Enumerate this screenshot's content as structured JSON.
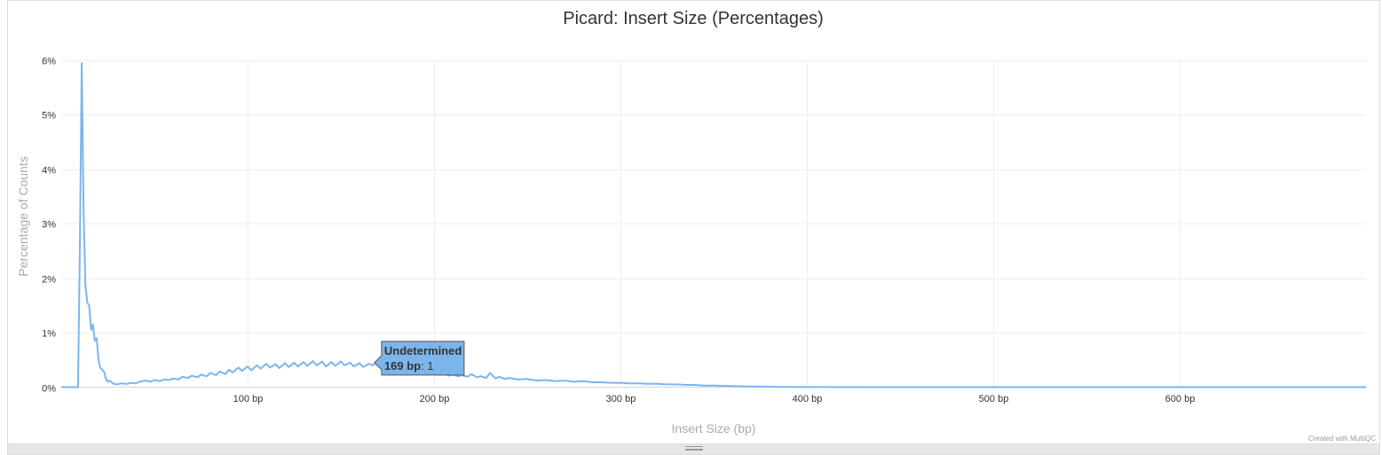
{
  "chart_data": {
    "type": "line",
    "title": "Picard: Insert Size (Percentages)",
    "xlabel": "Insert Size (bp)",
    "ylabel": "Percentage of Counts",
    "xlim": [
      0,
      700
    ],
    "ylim": [
      0,
      6
    ],
    "x_ticks": [
      {
        "value": 100,
        "label": "100 bp"
      },
      {
        "value": 200,
        "label": "200 bp"
      },
      {
        "value": 300,
        "label": "300 bp"
      },
      {
        "value": 400,
        "label": "400 bp"
      },
      {
        "value": 500,
        "label": "500 bp"
      },
      {
        "value": 600,
        "label": "600 bp"
      }
    ],
    "y_ticks": [
      {
        "value": 0,
        "label": "0%"
      },
      {
        "value": 1,
        "label": "1%"
      },
      {
        "value": 2,
        "label": "2%"
      },
      {
        "value": 3,
        "label": "3%"
      },
      {
        "value": 4,
        "label": "4%"
      },
      {
        "value": 5,
        "label": "5%"
      },
      {
        "value": 6,
        "label": "6%"
      }
    ],
    "grid": true,
    "series": [
      {
        "name": "Undetermined",
        "color": "#7cb5ec",
        "points": [
          [
            0,
            0
          ],
          [
            9,
            0
          ],
          [
            10,
            2.6
          ],
          [
            11,
            5.95
          ],
          [
            12,
            3.2
          ],
          [
            13,
            1.85
          ],
          [
            14,
            1.55
          ],
          [
            15,
            1.5
          ],
          [
            16,
            1.05
          ],
          [
            17,
            1.15
          ],
          [
            18,
            0.85
          ],
          [
            19,
            0.9
          ],
          [
            20,
            0.5
          ],
          [
            21,
            0.35
          ],
          [
            22,
            0.32
          ],
          [
            23,
            0.28
          ],
          [
            24,
            0.15
          ],
          [
            25,
            0.1
          ],
          [
            26,
            0.12
          ],
          [
            28,
            0.06
          ],
          [
            30,
            0.05
          ],
          [
            32,
            0.07
          ],
          [
            35,
            0.06
          ],
          [
            38,
            0.08
          ],
          [
            40,
            0.07
          ],
          [
            42,
            0.1
          ],
          [
            45,
            0.12
          ],
          [
            48,
            0.1
          ],
          [
            50,
            0.13
          ],
          [
            53,
            0.11
          ],
          [
            55,
            0.14
          ],
          [
            58,
            0.13
          ],
          [
            60,
            0.16
          ],
          [
            63,
            0.14
          ],
          [
            65,
            0.19
          ],
          [
            68,
            0.17
          ],
          [
            70,
            0.21
          ],
          [
            73,
            0.18
          ],
          [
            75,
            0.23
          ],
          [
            78,
            0.2
          ],
          [
            80,
            0.26
          ],
          [
            83,
            0.22
          ],
          [
            85,
            0.29
          ],
          [
            88,
            0.24
          ],
          [
            90,
            0.32
          ],
          [
            92,
            0.27
          ],
          [
            95,
            0.36
          ],
          [
            97,
            0.3
          ],
          [
            100,
            0.38
          ],
          [
            102,
            0.31
          ],
          [
            105,
            0.4
          ],
          [
            107,
            0.34
          ],
          [
            110,
            0.43
          ],
          [
            112,
            0.36
          ],
          [
            115,
            0.42
          ],
          [
            117,
            0.35
          ],
          [
            120,
            0.44
          ],
          [
            122,
            0.37
          ],
          [
            125,
            0.45
          ],
          [
            127,
            0.38
          ],
          [
            130,
            0.46
          ],
          [
            132,
            0.39
          ],
          [
            135,
            0.48
          ],
          [
            137,
            0.4
          ],
          [
            140,
            0.47
          ],
          [
            142,
            0.38
          ],
          [
            145,
            0.46
          ],
          [
            147,
            0.39
          ],
          [
            150,
            0.47
          ],
          [
            152,
            0.4
          ],
          [
            155,
            0.45
          ],
          [
            157,
            0.38
          ],
          [
            160,
            0.44
          ],
          [
            162,
            0.37
          ],
          [
            165,
            0.43
          ],
          [
            167,
            0.4
          ],
          [
            169,
            0.45
          ],
          [
            172,
            0.36
          ],
          [
            175,
            0.38
          ],
          [
            178,
            0.33
          ],
          [
            180,
            0.35
          ],
          [
            183,
            0.3
          ],
          [
            185,
            0.33
          ],
          [
            188,
            0.28
          ],
          [
            190,
            0.3
          ],
          [
            193,
            0.26
          ],
          [
            195,
            0.28
          ],
          [
            198,
            0.24
          ],
          [
            200,
            0.27
          ],
          [
            203,
            0.23
          ],
          [
            205,
            0.25
          ],
          [
            208,
            0.21
          ],
          [
            210,
            0.23
          ],
          [
            213,
            0.2
          ],
          [
            215,
            0.22
          ],
          [
            218,
            0.19
          ],
          [
            220,
            0.24
          ],
          [
            223,
            0.18
          ],
          [
            225,
            0.2
          ],
          [
            228,
            0.17
          ],
          [
            230,
            0.26
          ],
          [
            233,
            0.16
          ],
          [
            235,
            0.19
          ],
          [
            238,
            0.15
          ],
          [
            240,
            0.17
          ],
          [
            245,
            0.14
          ],
          [
            250,
            0.15
          ],
          [
            255,
            0.12
          ],
          [
            260,
            0.13
          ],
          [
            265,
            0.11
          ],
          [
            270,
            0.12
          ],
          [
            275,
            0.1
          ],
          [
            280,
            0.11
          ],
          [
            285,
            0.09
          ],
          [
            290,
            0.09
          ],
          [
            295,
            0.08
          ],
          [
            300,
            0.08
          ],
          [
            305,
            0.07
          ],
          [
            310,
            0.07
          ],
          [
            315,
            0.06
          ],
          [
            320,
            0.06
          ],
          [
            325,
            0.05
          ],
          [
            330,
            0.05
          ],
          [
            335,
            0.04
          ],
          [
            340,
            0.04
          ],
          [
            345,
            0.03
          ],
          [
            350,
            0.03
          ],
          [
            355,
            0.025
          ],
          [
            360,
            0.02
          ],
          [
            365,
            0.015
          ],
          [
            370,
            0.012
          ],
          [
            375,
            0.01
          ],
          [
            380,
            0.008
          ],
          [
            385,
            0.005
          ],
          [
            390,
            0.003
          ],
          [
            395,
            0.002
          ],
          [
            400,
            0.001
          ],
          [
            450,
            0
          ],
          [
            500,
            0
          ],
          [
            600,
            0
          ],
          [
            700,
            0
          ]
        ]
      }
    ],
    "tooltip": {
      "series_name": "Undetermined",
      "x_label": "169 bp",
      "value_text": ": 1",
      "x": 169,
      "y": 0.45
    },
    "credit": "Created with MultiQC"
  }
}
